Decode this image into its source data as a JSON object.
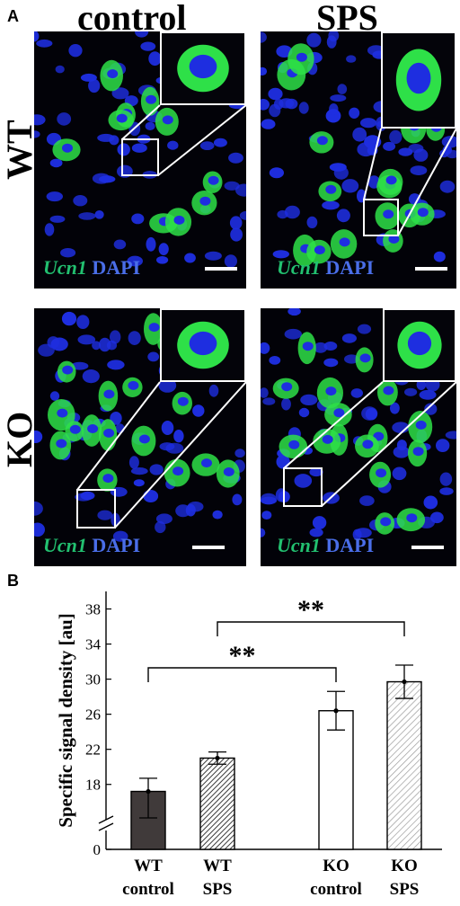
{
  "figure_a": {
    "panel_label": "A",
    "columns": [
      "control",
      "SPS"
    ],
    "rows": [
      "WT",
      "KO"
    ],
    "caption_gene": "Ucn1",
    "caption_stain": "DAPI",
    "colors": {
      "dapi": "#1e2ee0",
      "ucn1": "#2ee048",
      "background": "#020208",
      "scale_bar": "#ffffff"
    }
  },
  "figure_b": {
    "panel_label": "B",
    "significance_marks": [
      "**",
      "**"
    ]
  },
  "chart_data": {
    "type": "bar",
    "categories": [
      "WT control",
      "WT SPS",
      "KO control",
      "KO SPS"
    ],
    "category_lines": [
      [
        "WT",
        "control"
      ],
      [
        "WT",
        "SPS"
      ],
      [
        "KO",
        "control"
      ],
      [
        "KO",
        "SPS"
      ]
    ],
    "values": [
      17.2,
      21.0,
      26.4,
      29.7
    ],
    "errors": [
      1.5,
      0.7,
      2.2,
      1.9
    ],
    "fills": [
      "solid-dark",
      "dense-hatch",
      "white",
      "light-hatch"
    ],
    "bar_colors": [
      "#403a3a",
      "#555555",
      "#ffffff",
      "#c8c8c8"
    ],
    "ylabel": "Specific signal density [au]",
    "yticks": [
      0,
      18,
      22,
      26,
      30,
      34,
      38
    ],
    "ylim": [
      0,
      40
    ],
    "axis_break": true,
    "grid": false,
    "significance": [
      {
        "from": "WT control",
        "to": "KO control",
        "label": "**"
      },
      {
        "from": "WT SPS",
        "to": "KO SPS",
        "label": "**"
      }
    ]
  }
}
